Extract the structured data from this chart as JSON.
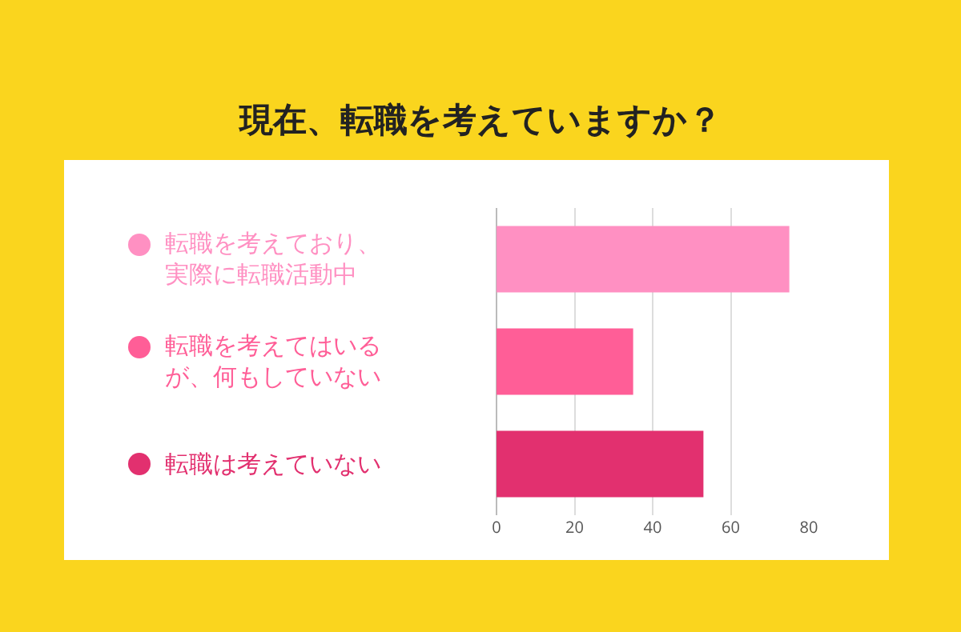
{
  "chart_data": {
    "type": "bar",
    "orientation": "horizontal",
    "title": "現在、転職を考えていますか？",
    "categories": [
      "転職を考えており、実際に転職活動中",
      "転職を考えてはいるが、何もしていない",
      "転職は考えていない"
    ],
    "values": [
      75,
      35,
      53
    ],
    "colors": [
      "#ff90c2",
      "#ff5e97",
      "#e2306f"
    ],
    "xlim": [
      0,
      80
    ],
    "xticks": [
      0,
      20,
      40,
      60,
      80
    ],
    "grid": "x"
  }
}
